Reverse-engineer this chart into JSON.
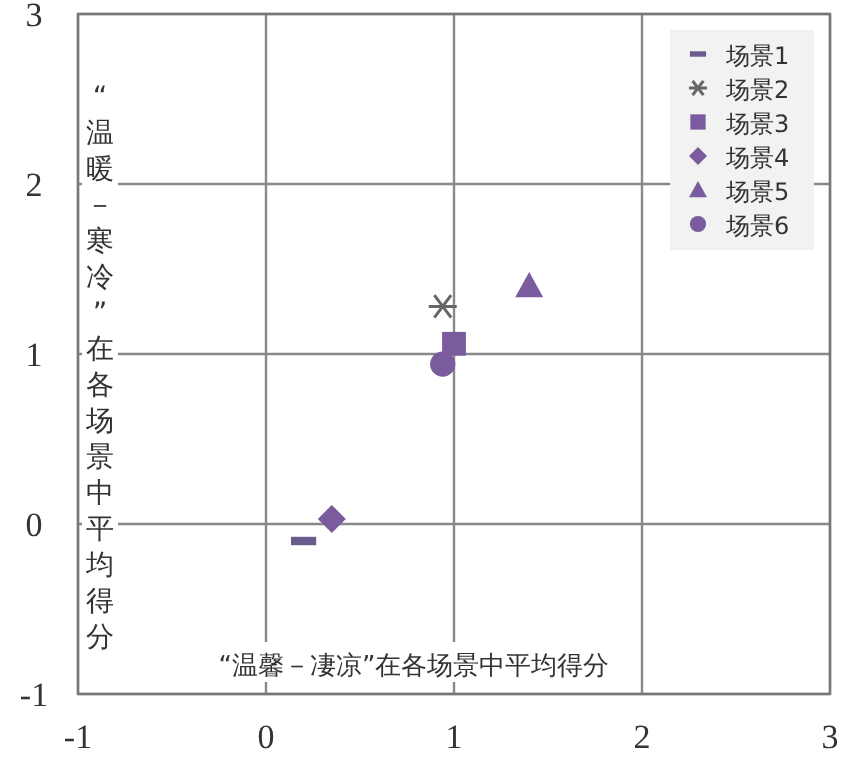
{
  "chart_data": {
    "type": "scatter",
    "xlabel": "“温馨－凄凉”在各场景中平均得分",
    "ylabel": "“温暖－寒冷”在各场景中平均得分",
    "xlim": [
      -1,
      3
    ],
    "ylim": [
      -1,
      3
    ],
    "xticks": [
      -1,
      0,
      1,
      2,
      3
    ],
    "yticks": [
      -1,
      0,
      1,
      2,
      3
    ],
    "grid": true,
    "legend": "top right",
    "series": [
      {
        "name": "场景1",
        "color": "#6b5a8e",
        "x": [
          0.2
        ],
        "values": [
          -0.1
        ]
      },
      {
        "name": "场景2",
        "color": "#666666",
        "marker": "cross",
        "x": [
          0.94
        ],
        "values": [
          1.28
        ]
      },
      {
        "name": "场景3",
        "color": "#7a5c9e",
        "marker": "square",
        "x": [
          1.0
        ],
        "values": [
          1.06
        ]
      },
      {
        "name": "场景4",
        "color": "#7a5c9e",
        "marker": "diamond",
        "x": [
          0.35
        ],
        "values": [
          0.03
        ]
      },
      {
        "name": "场景5",
        "color": "#7a5c9e",
        "marker": "triangle",
        "x": [
          1.4
        ],
        "values": [
          1.4
        ]
      },
      {
        "name": "场景6",
        "color": "#7a5c9e",
        "marker": "circle",
        "x": [
          0.94
        ],
        "values": [
          0.94
        ]
      }
    ]
  }
}
